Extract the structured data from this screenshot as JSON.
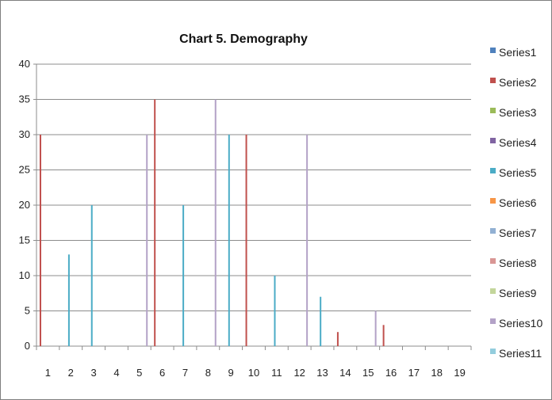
{
  "chart_data": {
    "type": "bar",
    "title": "Chart 5. Demography",
    "xlabel": "",
    "ylabel": "",
    "ylim": [
      0,
      40
    ],
    "yticks": [
      0,
      5,
      10,
      15,
      20,
      25,
      30,
      35,
      40
    ],
    "grid": true,
    "legend_position": "right",
    "categories": [
      "1",
      "2",
      "3",
      "4",
      "5",
      "6",
      "7",
      "8",
      "9",
      "10",
      "11",
      "12",
      "13",
      "14",
      "15",
      "16",
      "17",
      "18",
      "19"
    ],
    "series": [
      {
        "name": "Series1",
        "color": "#4F81BD",
        "values": [
          0,
          0,
          0,
          0,
          0,
          0,
          0,
          0,
          0,
          0,
          0,
          0,
          0,
          0,
          0,
          0,
          0,
          0,
          0
        ]
      },
      {
        "name": "Series2",
        "color": "#C0504D",
        "values": [
          30,
          0,
          0,
          0,
          0,
          35,
          0,
          0,
          0,
          30,
          0,
          0,
          0,
          2,
          0,
          3,
          0,
          0,
          0
        ]
      },
      {
        "name": "Series3",
        "color": "#9BBB59",
        "values": [
          0,
          0,
          0,
          0,
          0,
          0,
          0,
          0,
          0,
          0,
          0,
          0,
          0,
          0,
          0,
          0,
          0,
          0,
          0
        ]
      },
      {
        "name": "Series4",
        "color": "#8064A2",
        "values": [
          0,
          0,
          0,
          0,
          0,
          0,
          0,
          0,
          0,
          0,
          0,
          0,
          0,
          0,
          0,
          0,
          0,
          0,
          0
        ]
      },
      {
        "name": "Series5",
        "color": "#4BACC6",
        "values": [
          0,
          13,
          20,
          0,
          0,
          0,
          20,
          0,
          30,
          0,
          10,
          0,
          7,
          0,
          0,
          0,
          0,
          0,
          0
        ]
      },
      {
        "name": "Series6",
        "color": "#F79646",
        "values": [
          0,
          0,
          0,
          0,
          0,
          0,
          0,
          0,
          0,
          0,
          0,
          0,
          0,
          0,
          0,
          0,
          0,
          0,
          0
        ]
      },
      {
        "name": "Series7",
        "color": "#92B0D3",
        "values": [
          0,
          0,
          0,
          0,
          0,
          0,
          0,
          0,
          0,
          0,
          0,
          0,
          0,
          0,
          0,
          0,
          0,
          0,
          0
        ]
      },
      {
        "name": "Series8",
        "color": "#D99694",
        "values": [
          0,
          0,
          0,
          0,
          0,
          0,
          0,
          0,
          0,
          0,
          0,
          0,
          0,
          0,
          0,
          0,
          0,
          0,
          0
        ]
      },
      {
        "name": "Series9",
        "color": "#C3D69B",
        "values": [
          0,
          0,
          0,
          0,
          0,
          0,
          0,
          0,
          0,
          0,
          0,
          0,
          0,
          0,
          0,
          0,
          0,
          0,
          0
        ]
      },
      {
        "name": "Series10",
        "color": "#B3A2C7",
        "values": [
          0,
          0,
          0,
          0,
          30,
          0,
          0,
          35,
          0,
          0,
          0,
          30,
          0,
          0,
          5,
          0,
          0,
          0,
          0
        ]
      },
      {
        "name": "Series11",
        "color": "#93CDDD",
        "values": [
          0,
          0,
          0,
          0,
          0,
          0,
          0,
          0,
          0,
          0,
          0,
          0,
          0,
          0,
          0,
          0,
          0,
          0,
          0
        ]
      }
    ]
  }
}
